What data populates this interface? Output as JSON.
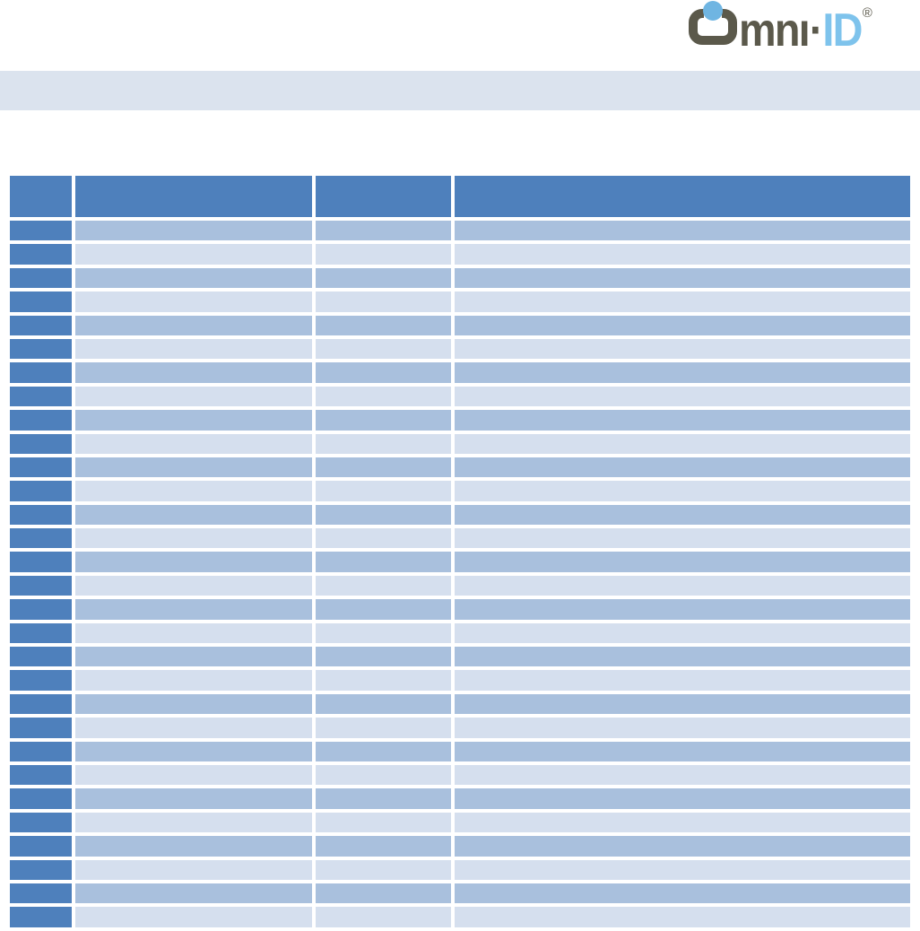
{
  "logo": {
    "brand": "Omni-ID",
    "part_omn": "mnı",
    "separator": "·",
    "part_id": "ID",
    "registered_mark": "®"
  },
  "colors": {
    "table_header_blue": "#4E80BC",
    "first_column_blue": "#4E80BC",
    "band_medium_blue": "#A9C0DD",
    "band_light_blue": "#D5DFEE",
    "top_band_gray_blue": "#DBE3EE",
    "logo_olive": "#5B594B",
    "logo_blue": "#7EC3EC",
    "logo_dot_blue": "#6FB5E2"
  },
  "table": {
    "header": [
      "",
      "",
      "",
      ""
    ],
    "rows": [
      [
        "",
        "",
        "",
        ""
      ],
      [
        "",
        "",
        "",
        ""
      ],
      [
        "",
        "",
        "",
        ""
      ],
      [
        "",
        "",
        "",
        ""
      ],
      [
        "",
        "",
        "",
        ""
      ],
      [
        "",
        "",
        "",
        ""
      ],
      [
        "",
        "",
        "",
        ""
      ],
      [
        "",
        "",
        "",
        ""
      ],
      [
        "",
        "",
        "",
        ""
      ],
      [
        "",
        "",
        "",
        ""
      ],
      [
        "",
        "",
        "",
        ""
      ],
      [
        "",
        "",
        "",
        ""
      ],
      [
        "",
        "",
        "",
        ""
      ],
      [
        "",
        "",
        "",
        ""
      ],
      [
        "",
        "",
        "",
        ""
      ],
      [
        "",
        "",
        "",
        ""
      ],
      [
        "",
        "",
        "",
        ""
      ],
      [
        "",
        "",
        "",
        ""
      ],
      [
        "",
        "",
        "",
        ""
      ],
      [
        "",
        "",
        "",
        ""
      ],
      [
        "",
        "",
        "",
        ""
      ],
      [
        "",
        "",
        "",
        ""
      ],
      [
        "",
        "",
        "",
        ""
      ],
      [
        "",
        "",
        "",
        ""
      ],
      [
        "",
        "",
        "",
        ""
      ],
      [
        "",
        "",
        "",
        ""
      ],
      [
        "",
        "",
        "",
        ""
      ],
      [
        "",
        "",
        "",
        ""
      ],
      [
        "",
        "",
        "",
        ""
      ],
      [
        "",
        "",
        "",
        ""
      ]
    ]
  }
}
